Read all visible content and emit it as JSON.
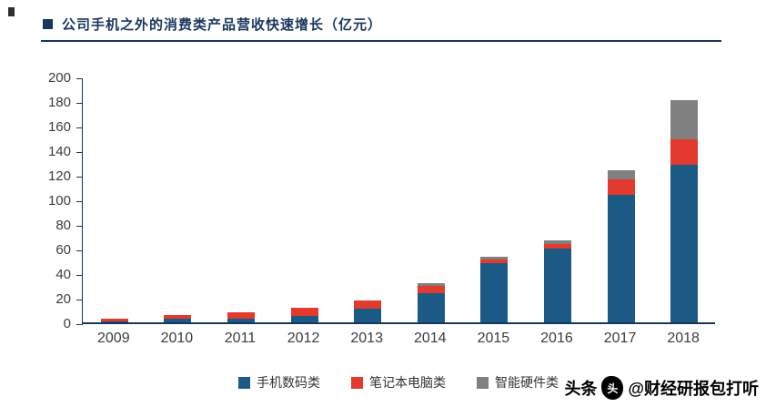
{
  "header": {
    "title": "公司手机之外的消费类产品营收快速增长（亿元）"
  },
  "watermark": {
    "prefix": "头条",
    "handle": "@财经研报包打听",
    "logo_glyph": "头"
  },
  "colors": {
    "accent_navy": "#17375E",
    "bar_blue": "#1A5A85",
    "bar_red": "#E23B2E",
    "bar_gray": "#808080"
  },
  "chart_data": {
    "type": "bar",
    "stacked": true,
    "title": "公司手机之外的消费类产品营收快速增长（亿元）",
    "xlabel": "",
    "ylabel": "",
    "ylim": [
      0,
      200
    ],
    "ytick_step": 20,
    "grid": false,
    "legend_position": "bottom",
    "categories": [
      "2009",
      "2010",
      "2011",
      "2012",
      "2013",
      "2014",
      "2015",
      "2016",
      "2017",
      "2018"
    ],
    "series": [
      {
        "name": "手机数码类",
        "color": "#1A5A85",
        "values": [
          1,
          3,
          3,
          5,
          11,
          24,
          48,
          60,
          104,
          128
        ]
      },
      {
        "name": "笔记本电脑类",
        "color": "#E23B2E",
        "values": [
          2,
          3,
          5,
          7,
          7,
          6,
          3,
          4,
          12,
          21
        ]
      },
      {
        "name": "智能硬件类",
        "color": "#808080",
        "values": [
          0,
          0,
          0,
          0,
          0,
          2,
          2,
          3,
          8,
          32
        ]
      }
    ],
    "totals": [
      3,
      6,
      8,
      12,
      18,
      32,
      53,
      67,
      124,
      181
    ]
  }
}
